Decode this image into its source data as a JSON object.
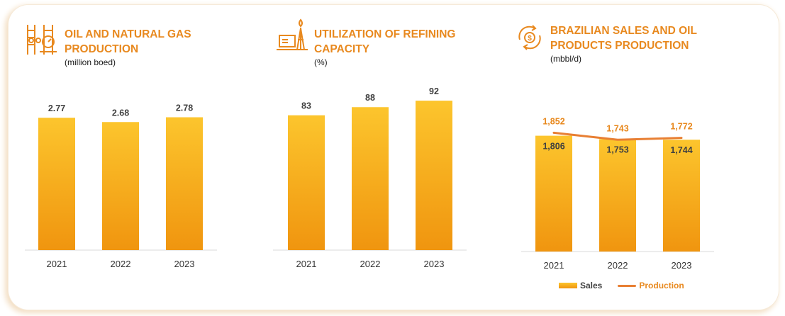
{
  "colors": {
    "accent": "#e8891f",
    "bar_top": "#fcc52d",
    "bar_bottom": "#f0950f",
    "line": "#e87f33",
    "label_dark": "#404040",
    "label_line": "#e8891f",
    "axis": "#d9d9d9"
  },
  "chart_data": [
    {
      "type": "bar",
      "title": "OIL AND NATURAL GAS\nPRODUCTION",
      "unit": "(million boed)",
      "icon": "oil-gas-production-icon",
      "categories": [
        "2021",
        "2022",
        "2023"
      ],
      "values": [
        2.77,
        2.68,
        2.78
      ],
      "value_labels": [
        "2.77",
        "2.68",
        "2.78"
      ],
      "ylim": [
        0,
        4.3
      ]
    },
    {
      "type": "bar",
      "title": "UTILIZATION OF  REFINING\nCAPACITY",
      "unit": "(%)",
      "icon": "refinery-icon",
      "categories": [
        "2021",
        "2022",
        "2023"
      ],
      "values": [
        83,
        88,
        92
      ],
      "value_labels": [
        "83",
        "88",
        "92"
      ],
      "ylim": [
        0,
        102.5
      ]
    },
    {
      "type": "bar+line",
      "title": "BRAZILIAN SALES AND OIL\nPRODUCTS PRODUCTION",
      "unit": "(mbbl/d)",
      "icon": "dollar-exchange-icon",
      "categories": [
        "2021",
        "2022",
        "2023"
      ],
      "series": [
        {
          "name": "Sales",
          "kind": "bar",
          "values": [
            1806,
            1753,
            1744
          ],
          "value_labels": [
            "1,806",
            "1,753",
            "1,744"
          ]
        },
        {
          "name": "Production",
          "kind": "line",
          "values": [
            1852,
            1743,
            1772
          ],
          "value_labels": [
            "1,852",
            "1,743",
            "1,772"
          ]
        }
      ],
      "ylim": [
        0,
        2210
      ],
      "legend": {
        "position": "bottom-center",
        "sales_label": "Sales",
        "production_label": "Production"
      }
    }
  ]
}
